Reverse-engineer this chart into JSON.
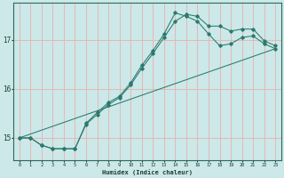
{
  "xlabel": "Humidex (Indice chaleur)",
  "background_color": "#cce8e8",
  "line_color": "#2a7a6e",
  "grid_color": "#e8b0b0",
  "xlim": [
    -0.5,
    23.5
  ],
  "ylim": [
    14.55,
    17.75
  ],
  "yticks": [
    15,
    16,
    17
  ],
  "xticks": [
    0,
    1,
    2,
    3,
    4,
    5,
    6,
    7,
    8,
    9,
    10,
    11,
    12,
    13,
    14,
    15,
    16,
    17,
    18,
    19,
    20,
    21,
    22,
    23
  ],
  "line1_x": [
    0,
    1,
    2,
    3,
    4,
    5,
    6,
    7,
    8,
    9,
    10,
    11,
    12,
    13,
    14,
    15,
    16,
    17,
    18,
    19,
    20,
    21,
    22,
    23
  ],
  "line1_y": [
    15.0,
    15.0,
    14.85,
    14.78,
    14.78,
    14.78,
    15.3,
    15.52,
    15.72,
    15.85,
    16.12,
    16.48,
    16.78,
    17.12,
    17.55,
    17.48,
    17.38,
    17.12,
    16.88,
    16.92,
    17.05,
    17.08,
    16.92,
    16.82
  ],
  "line2_x": [
    0,
    1,
    2,
    3,
    4,
    5,
    6,
    7,
    8,
    9,
    10,
    11,
    12,
    13,
    14,
    15,
    16,
    17,
    18,
    19,
    20,
    21,
    22,
    23
  ],
  "line2_y": [
    15.0,
    15.0,
    14.85,
    14.78,
    14.78,
    14.78,
    15.28,
    15.48,
    15.68,
    15.82,
    16.08,
    16.42,
    16.72,
    17.05,
    17.38,
    17.52,
    17.48,
    17.28,
    17.28,
    17.18,
    17.22,
    17.22,
    16.98,
    16.88
  ],
  "line3_x": [
    0,
    23
  ],
  "line3_y": [
    15.0,
    16.82
  ]
}
